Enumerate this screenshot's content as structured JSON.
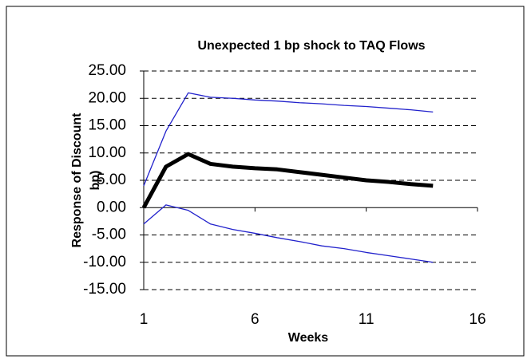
{
  "chart_data": {
    "type": "line",
    "title": "Unexpected 1 bp shock to TAQ Flows",
    "x_label": "Weeks",
    "y_label": [
      "Response of Discount",
      "bp)"
    ],
    "x": [
      1,
      2,
      3,
      4,
      5,
      6,
      7,
      8,
      9,
      10,
      11,
      12,
      13,
      14
    ],
    "series": [
      {
        "color": "#2222cc",
        "width": 1.3,
        "values": [
          4,
          14,
          21,
          20.2,
          20,
          19.7,
          19.5,
          19.2,
          19,
          18.7,
          18.5,
          18.2,
          17.9,
          17.5
        ]
      },
      {
        "color": "#000000",
        "width": 5,
        "values": [
          0,
          7.5,
          9.8,
          8,
          7.5,
          7.2,
          7,
          6.5,
          6,
          5.5,
          5,
          4.7,
          4.3,
          4
        ]
      },
      {
        "color": "#2222cc",
        "width": 1.3,
        "values": [
          -3,
          0.5,
          -0.5,
          -3,
          -4,
          -4.7,
          -5.5,
          -6.2,
          -7,
          -7.5,
          -8.2,
          -8.8,
          -9.4,
          -10
        ]
      }
    ],
    "xlim": [
      1,
      16
    ],
    "xticks": [
      1,
      6,
      11,
      16
    ],
    "ylim": [
      -15,
      25
    ],
    "yticks": [
      {
        "value": -15,
        "label": "-15.00"
      },
      {
        "value": -10,
        "label": "-10.00"
      },
      {
        "value": -5,
        "label": "-5.00"
      },
      {
        "value": 0,
        "label": "0.00"
      },
      {
        "value": 5,
        "label": "5.00"
      },
      {
        "value": 10,
        "label": "10.00"
      },
      {
        "value": 15,
        "label": "15.00"
      },
      {
        "value": 20,
        "label": "20.00"
      },
      {
        "value": 25,
        "label": "25.00"
      }
    ],
    "grid": true
  }
}
